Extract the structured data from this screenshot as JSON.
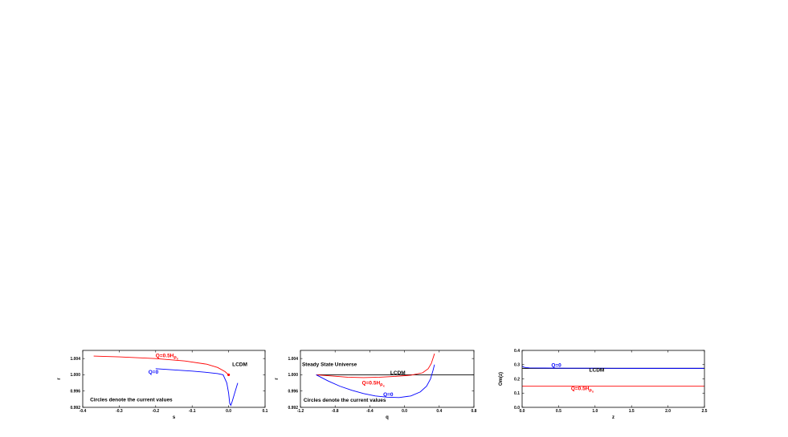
{
  "chart_data": [
    {
      "type": "line",
      "title": "",
      "xlabel": "s",
      "ylabel": "r",
      "xlim": [
        -0.4,
        0.1
      ],
      "ylim": [
        0.992,
        1.006
      ],
      "xticks": [
        "-0.4",
        "-0.3",
        "-0.2",
        "-0.1",
        "0.0",
        "0.1"
      ],
      "yticks": [
        "0.992",
        "0.996",
        "1.000",
        "1.004"
      ],
      "grid": false,
      "series": [
        {
          "name": "",
          "color": "#ff0000",
          "x": [
            -0.37,
            -0.3,
            -0.2,
            -0.12,
            -0.06,
            -0.03,
            -0.01,
            0.0
          ],
          "y": [
            1.0046,
            1.0044,
            1.004,
            1.0034,
            1.0026,
            1.0018,
            1.0008,
            1.0
          ]
        },
        {
          "name": "",
          "color": "#0000ff",
          "x": [
            -0.2,
            -0.15,
            -0.1,
            -0.06,
            -0.03,
            -0.015,
            -0.005,
            0.0,
            0.003,
            0.006,
            0.01,
            0.015,
            0.02,
            0.025
          ],
          "y": [
            1.0015,
            1.0012,
            1.0009,
            1.0006,
            1.0003,
            1.0,
            0.998,
            0.9955,
            0.993,
            0.9925,
            0.9935,
            0.995,
            0.9965,
            0.998
          ]
        }
      ],
      "markers": [
        {
          "x": 0.0,
          "y": 1.0,
          "color": "#ff0000"
        }
      ],
      "annotations": [
        {
          "text": "Q=0.5H",
          "sub": "ρ",
          "subsub": "x",
          "x": -0.2,
          "y": 1.0043,
          "color": "#ff0000"
        },
        {
          "text": "Q=0",
          "x": -0.22,
          "y": 1.0003,
          "color": "#0000ff"
        },
        {
          "text": "LCDM",
          "x": 0.01,
          "y": 1.0022,
          "color": "#000000"
        },
        {
          "text": "Circles denote the current values",
          "x": -0.38,
          "y": 0.9935,
          "color": "#000000"
        }
      ]
    },
    {
      "type": "line",
      "title": "",
      "xlabel": "q",
      "ylabel": "r",
      "xlim": [
        -1.2,
        1.0
      ],
      "ylim": [
        0.992,
        1.006
      ],
      "xticks": [
        "-1.2",
        "-0.8",
        "-0.4",
        "0.0",
        "0.4",
        "0.8"
      ],
      "yticks": [
        "0.992",
        "0.996",
        "1.000",
        "1.004"
      ],
      "grid": false,
      "series": [
        {
          "name": "",
          "color": "#000000",
          "x": [
            -1.0,
            1.0
          ],
          "y": [
            1.0,
            1.0
          ]
        },
        {
          "name": "",
          "color": "#ff0000",
          "x": [
            -1.0,
            -0.8,
            -0.6,
            -0.4,
            -0.2,
            0.0,
            0.2,
            0.35,
            0.42,
            0.46,
            0.48,
            0.5
          ],
          "y": [
            1.0,
            0.9997,
            0.9994,
            0.9993,
            0.9994,
            0.9996,
            0.9999,
            1.0005,
            1.0015,
            1.0028,
            1.004,
            1.0052
          ]
        },
        {
          "name": "",
          "color": "#0000ff",
          "x": [
            -1.0,
            -0.85,
            -0.7,
            -0.55,
            -0.4,
            -0.25,
            -0.1,
            0.05,
            0.2,
            0.32,
            0.4,
            0.45,
            0.48,
            0.5
          ],
          "y": [
            1.0,
            0.9985,
            0.9972,
            0.9962,
            0.9954,
            0.9948,
            0.9945,
            0.9944,
            0.9948,
            0.9958,
            0.9972,
            0.999,
            1.001,
            1.0025
          ]
        }
      ],
      "markers": [],
      "annotations": [
        {
          "text": "Steady State Universe",
          "x": -1.18,
          "y": 1.0022,
          "color": "#000000"
        },
        {
          "text": "LCDM",
          "x": -0.06,
          "y": 1.0001,
          "color": "#000000"
        },
        {
          "text": "Q=0.5H",
          "sub": "ρ",
          "subsub": "x",
          "x": -0.42,
          "y": 0.9976,
          "color": "#ff0000"
        },
        {
          "text": "Q=0",
          "x": -0.15,
          "y": 0.9948,
          "color": "#0000ff"
        },
        {
          "text": "Circles denote the current values",
          "x": -1.16,
          "y": 0.9934,
          "color": "#000000"
        }
      ]
    },
    {
      "type": "line",
      "title": "",
      "xlabel": "z",
      "ylabel": "Om(z)",
      "xlim": [
        0.0,
        2.5
      ],
      "ylim": [
        0.0,
        0.4
      ],
      "xticks": [
        "0.0",
        "0.5",
        "1.0",
        "1.5",
        "2.0",
        "2.5"
      ],
      "yticks": [
        "0.0",
        "0.1",
        "0.2",
        "0.3",
        "0.4"
      ],
      "grid": false,
      "series": [
        {
          "name": "",
          "color": "#000000",
          "x": [
            0.0,
            2.5
          ],
          "y": [
            0.274,
            0.274
          ]
        },
        {
          "name": "",
          "color": "#0000ff",
          "x": [
            0.0,
            0.02,
            0.05,
            0.1,
            0.3,
            0.6,
            1.0,
            1.5,
            2.0,
            2.5
          ],
          "y": [
            0.29,
            0.283,
            0.279,
            0.277,
            0.276,
            0.275,
            0.275,
            0.274,
            0.274,
            0.274
          ]
        },
        {
          "name": "",
          "color": "#ff0000",
          "x": [
            0.0,
            0.5,
            1.0,
            1.5,
            2.0,
            2.5
          ],
          "y": [
            0.148,
            0.148,
            0.148,
            0.148,
            0.148,
            0.148
          ]
        }
      ],
      "markers": [],
      "annotations": [
        {
          "text": "Q=0",
          "x": 0.4,
          "y": 0.285,
          "color": "#0000ff"
        },
        {
          "text": "LCDM",
          "x": 0.92,
          "y": 0.25,
          "color": "#000000"
        },
        {
          "text": "Q=0.5H",
          "sub": "ρ",
          "subsub": "x",
          "x": 0.67,
          "y": 0.122,
          "color": "#ff0000"
        }
      ]
    }
  ]
}
